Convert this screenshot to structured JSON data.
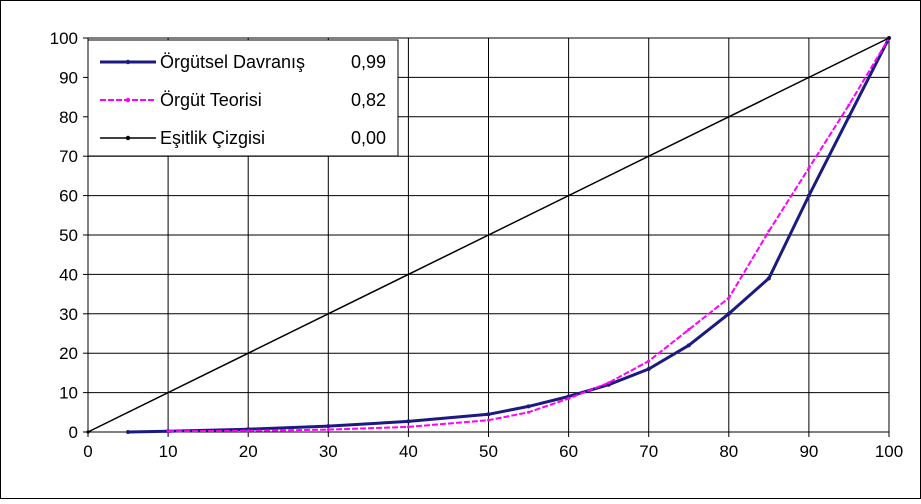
{
  "chart_data": {
    "type": "line",
    "title": "",
    "xlabel": "",
    "ylabel": "",
    "xlim": [
      0,
      100
    ],
    "ylim": [
      0,
      100
    ],
    "x_ticks": [
      0,
      10,
      20,
      30,
      40,
      50,
      60,
      70,
      80,
      90,
      100
    ],
    "y_ticks": [
      0,
      10,
      20,
      30,
      40,
      50,
      60,
      70,
      80,
      90,
      100
    ],
    "grid": true,
    "legend_position": "top-left",
    "series": [
      {
        "name": "Örgütsel Davranış",
        "value_label": "0,99",
        "color": "#1a1a80",
        "x": [
          5,
          10,
          20,
          30,
          40,
          50,
          55,
          60,
          65,
          70,
          75,
          80,
          85,
          90,
          95,
          100
        ],
        "y": [
          0,
          0.2,
          0.7,
          1.5,
          2.7,
          4.5,
          6.5,
          9,
          12,
          16,
          22,
          30,
          39,
          60,
          80,
          100
        ]
      },
      {
        "name": "Örgüt Teorisi",
        "value_label": "0,82",
        "color": "#ff00ff",
        "x": [
          10,
          20,
          30,
          40,
          50,
          55,
          60,
          65,
          70,
          75,
          80,
          85,
          90,
          95,
          100
        ],
        "y": [
          0.2,
          0.3,
          0.6,
          1.3,
          3,
          5,
          8.5,
          12.5,
          18,
          26,
          34,
          51,
          67,
          83,
          100
        ]
      },
      {
        "name": "Eşitlik Çizgisi",
        "value_label": "0,00",
        "color": "#000000",
        "x": [
          0,
          100
        ],
        "y": [
          0,
          100
        ]
      }
    ]
  }
}
